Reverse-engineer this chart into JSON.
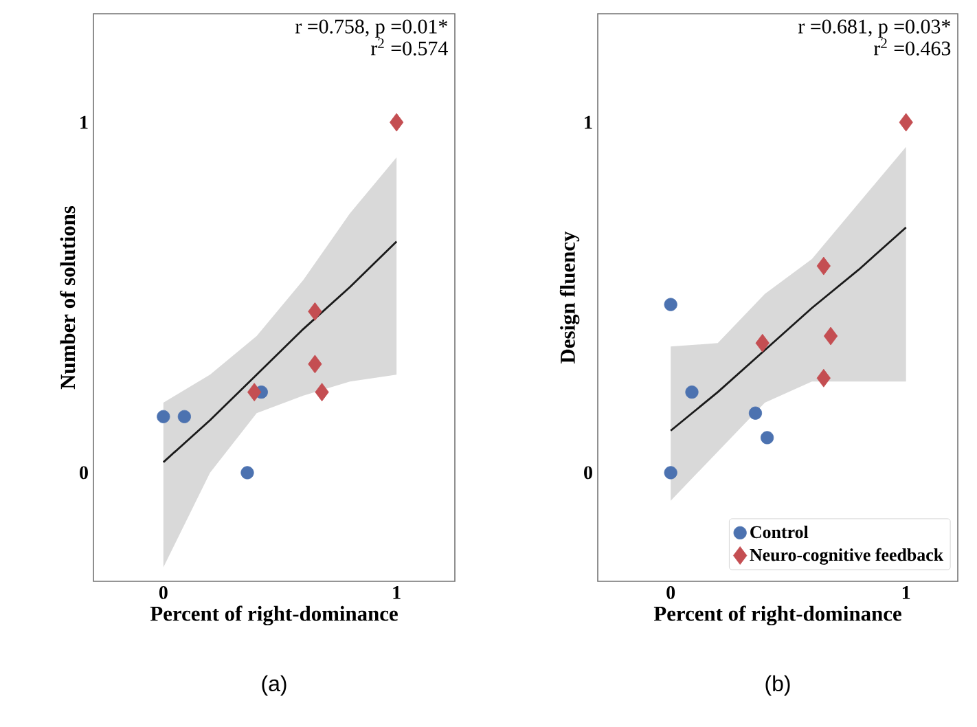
{
  "chart_data": [
    {
      "type": "scatter",
      "title": "(a)",
      "xlabel": "Percent of right-dominance",
      "ylabel": "Number of solutions",
      "xlim": [
        -0.3,
        1.25
      ],
      "ylim": [
        -0.31,
        1.31
      ],
      "xticks": [
        0,
        1
      ],
      "yticks": [
        0,
        1
      ],
      "grid": false,
      "legend": false,
      "annotations": [
        "r =0.758, p =0.01*",
        "r$^{2}$ =0.574"
      ],
      "series": [
        {
          "type": "line",
          "color": "#1a1a1a",
          "marker": "none",
          "x": [
            0,
            0.2,
            0.4,
            0.6,
            0.8,
            1
          ],
          "values": [
            0.03,
            0.15,
            0.28,
            0.41,
            0.53,
            0.66
          ],
          "lower": [
            -0.27,
            0.0,
            0.17,
            0.22,
            0.26,
            0.28
          ],
          "upper": [
            0.2,
            0.28,
            0.39,
            0.55,
            0.74,
            0.9
          ]
        },
        {
          "color": "#4c72b0",
          "marker": "circle",
          "x": [
            0,
            0.09,
            0.36,
            0.42
          ],
          "values": [
            0.16,
            0.16,
            0,
            0.23
          ]
        },
        {
          "color": "#c44e52",
          "marker": "diamond",
          "x": [
            0.39,
            0.65,
            0.65,
            0.68,
            1
          ],
          "values": [
            0.23,
            0.46,
            0.31,
            0.23,
            1
          ]
        }
      ]
    },
    {
      "type": "scatter",
      "title": "(b)",
      "xlabel": "Percent of right-dominance",
      "ylabel": "Design fluency",
      "xlim": [
        -0.31,
        1.22
      ],
      "ylim": [
        -0.31,
        1.31
      ],
      "xticks": [
        0,
        1
      ],
      "yticks": [
        0,
        1
      ],
      "grid": false,
      "legend": "bottom right",
      "annotations": [
        "r =0.681, p =0.03*",
        "r$^{2}$ =0.463"
      ],
      "series": [
        {
          "type": "line",
          "color": "#1a1a1a",
          "marker": "none",
          "x": [
            0,
            0.2,
            0.4,
            0.6,
            0.8,
            1
          ],
          "values": [
            0.12,
            0.23,
            0.35,
            0.47,
            0.58,
            0.7
          ],
          "lower": [
            -0.08,
            0.06,
            0.2,
            0.26,
            0.26,
            0.26
          ],
          "upper": [
            0.36,
            0.37,
            0.51,
            0.61,
            0.77,
            0.93
          ]
        },
        {
          "name": "Control",
          "color": "#4c72b0",
          "marker": "circle",
          "x": [
            0,
            0.09,
            0.36,
            0.41,
            0
          ],
          "values": [
            0.48,
            0.23,
            0.17,
            0.1,
            0
          ]
        },
        {
          "name": "Neuro-cognitive feedback",
          "color": "#c44e52",
          "marker": "diamond",
          "x": [
            0.39,
            0.65,
            0.68,
            0.65,
            1
          ],
          "values": [
            0.37,
            0.59,
            0.39,
            0.27,
            1
          ]
        }
      ]
    }
  ]
}
